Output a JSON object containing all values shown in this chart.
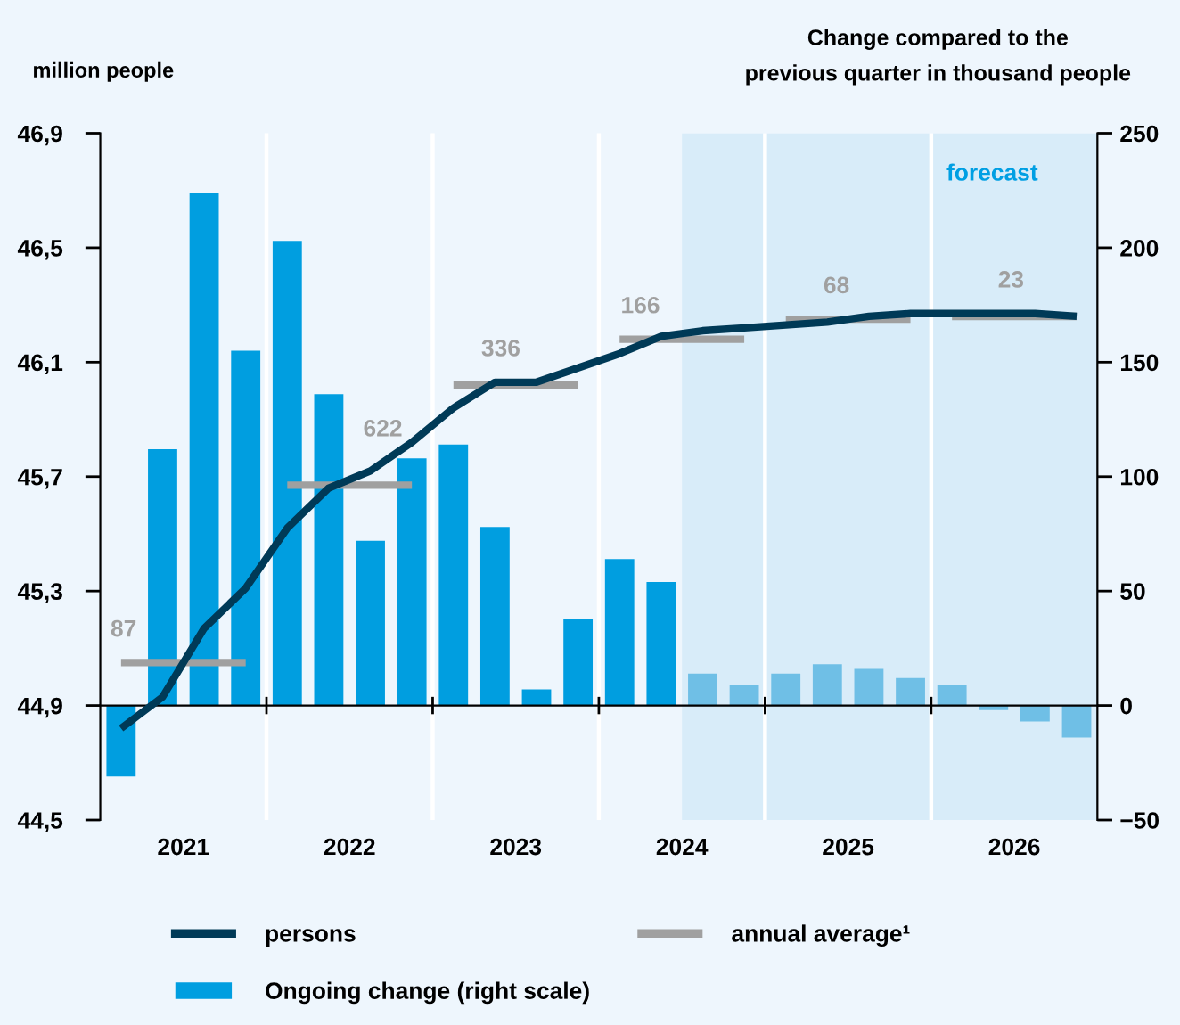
{
  "chart_data": {
    "type": "bar",
    "ylabel": "million people",
    "y2label": "Change compared to the\nprevious quarter in thousand people",
    "x": [
      2021.125,
      2021.375,
      2021.625,
      2021.875,
      2022.125,
      2022.375,
      2022.625,
      2022.875,
      2023.125,
      2023.375,
      2023.625,
      2023.875,
      2024.125,
      2024.375,
      2024.625,
      2024.875,
      2025.125,
      2025.375,
      2025.625,
      2025.875,
      2026.125,
      2026.375,
      2026.625,
      2026.875
    ],
    "xlim": [
      2021,
      2027
    ],
    "xticks": [
      {
        "value": 2021.5,
        "label": "2021"
      },
      {
        "value": 2022,
        "label": null
      },
      {
        "value": 2022.5,
        "label": "2022"
      },
      {
        "value": 2023,
        "label": null
      },
      {
        "value": 2023.5,
        "label": "2023"
      },
      {
        "value": 2024,
        "label": null
      },
      {
        "value": 2024.5,
        "label": "2024"
      },
      {
        "value": 2025,
        "label": null
      },
      {
        "value": 2025.5,
        "label": "2025"
      },
      {
        "value": 2026,
        "label": null
      },
      {
        "value": 2026.5,
        "label": "2026"
      }
    ],
    "ylim": [
      44.5,
      46.9
    ],
    "yticks": [
      {
        "value": 44.5,
        "label": "44,5"
      },
      {
        "value": 44.9,
        "label": "44,9"
      },
      {
        "value": 45.3,
        "label": "45,3"
      },
      {
        "value": 45.7,
        "label": "45,7"
      },
      {
        "value": 46.1,
        "label": "46,1"
      },
      {
        "value": 46.5,
        "label": "46,5"
      },
      {
        "value": 46.9,
        "label": "46,9"
      }
    ],
    "y2lim": [
      -50,
      250
    ],
    "y2ticks": [
      {
        "value": -50,
        "label": "−50"
      },
      0,
      50,
      100,
      150,
      200,
      250
    ],
    "grid": "x",
    "legend": "bottom",
    "bands": [
      {
        "axis": "x",
        "from": 2024.5,
        "to": 2027,
        "label": "forecast",
        "color": "#d8ecf9"
      }
    ],
    "series": [
      {
        "name": "persons",
        "type": "line",
        "axis": "y",
        "color": "#003a57",
        "values": [
          44.82,
          44.93,
          45.17,
          45.31,
          45.52,
          45.66,
          45.72,
          45.82,
          45.94,
          46.03,
          46.03,
          46.08,
          46.13,
          46.19,
          46.21,
          46.22,
          46.23,
          46.24,
          46.26,
          46.27,
          46.27,
          46.27,
          46.27,
          46.26
        ]
      },
      {
        "name": "Ongoing change (right scale)",
        "axis": "y2",
        "color": "#009ee0",
        "colors": [
          "#009ee0",
          "#009ee0",
          "#009ee0",
          "#009ee0",
          "#009ee0",
          "#009ee0",
          "#009ee0",
          "#009ee0",
          "#009ee0",
          "#009ee0",
          "#009ee0",
          "#009ee0",
          "#009ee0",
          "#009ee0",
          "#6fbfe6",
          "#6fbfe6",
          "#6fbfe6",
          "#6fbfe6",
          "#6fbfe6",
          "#6fbfe6",
          "#6fbfe6",
          "#6fbfe6",
          "#6fbfe6",
          "#6fbfe6"
        ],
        "values": [
          -31,
          112,
          224,
          155,
          203,
          136,
          72,
          108,
          114,
          78,
          7,
          38,
          64,
          54,
          14,
          9,
          14,
          18,
          16,
          12,
          9,
          -2,
          -7,
          -14
        ]
      },
      {
        "name": "annual average¹",
        "type": "line",
        "axis": "y",
        "color": "#a0a0a0",
        "x": [
          2021.125,
          2021.875,
          2022,
          2022.125,
          2022.875,
          2023,
          2023.125,
          2023.875,
          2024,
          2024.125,
          2024.875,
          2025,
          2025.125,
          2025.875,
          2026,
          2026.125,
          2026.875
        ],
        "values": [
          45.05,
          45.05,
          null,
          45.67,
          45.67,
          null,
          46.02,
          46.02,
          null,
          46.18,
          46.18,
          null,
          46.25,
          46.25,
          null,
          46.26,
          46.26
        ]
      }
    ],
    "annotations": [
      {
        "text": "87",
        "x": 2021.14,
        "y": 45.05
      },
      {
        "text": "622",
        "x": 2022.7,
        "y": 45.67
      },
      {
        "text": "336",
        "x": 2023.41,
        "y": 46.02
      },
      {
        "text": "166",
        "x": 2024.25,
        "y": 46.18
      },
      {
        "text": "68",
        "x": 2025.43,
        "y": 46.25
      },
      {
        "text": "23",
        "x": 2026.48,
        "y": 46.26
      }
    ]
  }
}
